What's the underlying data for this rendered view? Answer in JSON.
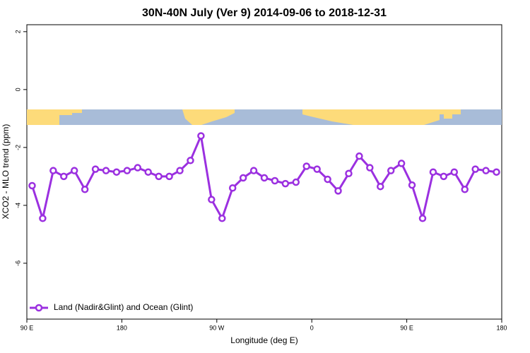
{
  "chart_data": {
    "type": "line",
    "title": "30N-40N July (Ver 9)   2014-09-06 to 2018-12-31",
    "x_label": "Longitude (deg E)",
    "y_label": "XCO2 - MLO trend (ppm)",
    "x": [
      95,
      105,
      115,
      125,
      135,
      145,
      155,
      165,
      175,
      185,
      195,
      205,
      215,
      225,
      235,
      245,
      255,
      265,
      275,
      285,
      295,
      305,
      315,
      325,
      335,
      345,
      355,
      365,
      375,
      385,
      395,
      405,
      415,
      425,
      435,
      445,
      455,
      465,
      475,
      485,
      495,
      505,
      515,
      525,
      535
    ],
    "series": [
      {
        "name": "Land (Nadir&Glint) and Ocean (Glint)",
        "color": "#9b30e0",
        "values": [
          -3.32,
          -4.45,
          -2.8,
          -3.0,
          -2.8,
          -3.45,
          -2.75,
          -2.8,
          -2.85,
          -2.8,
          -2.7,
          -2.85,
          -3.0,
          -3.0,
          -2.8,
          -2.45,
          -1.6,
          -3.8,
          -4.45,
          -3.4,
          -3.05,
          -2.8,
          -3.05,
          -3.15,
          -3.25,
          -3.2,
          -2.65,
          -2.75,
          -3.1,
          -3.5,
          -2.9,
          -2.3,
          -2.7,
          -3.35,
          -2.8,
          -2.55,
          -3.3,
          -4.45,
          -2.85,
          -3.0,
          -2.85,
          -3.45,
          -2.75,
          -2.8,
          -2.85
        ]
      }
    ],
    "xlim": [
      90,
      540
    ],
    "xticks": [
      {
        "value": 90,
        "label": "90 E"
      },
      180,
      {
        "value": 270,
        "label": "90 W"
      },
      {
        "value": 360,
        "label": "0"
      },
      {
        "value": 450,
        "label": "90 E"
      },
      {
        "value": 540,
        "label": "180"
      }
    ],
    "ylim": [
      -7.93,
      2.24
    ],
    "yticks": [
      2,
      0,
      -2,
      -4,
      -6
    ],
    "legend_position": "bottom-left"
  }
}
